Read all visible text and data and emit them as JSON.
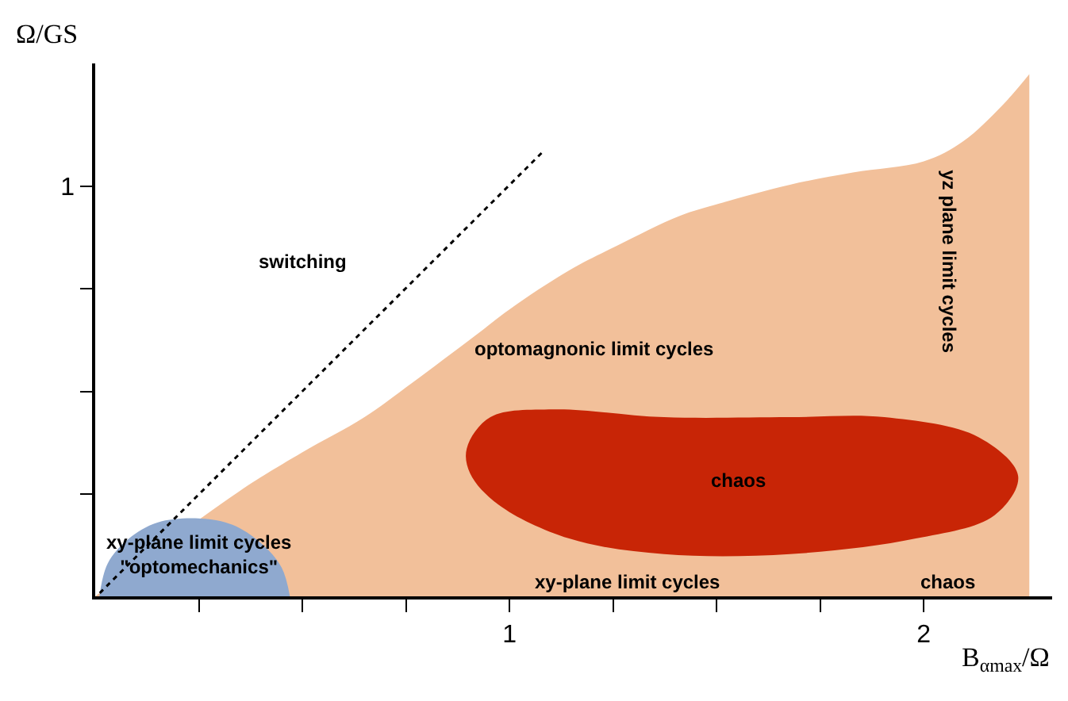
{
  "chart_data": {
    "type": "area",
    "xlabel": "B$_{αmax}$/Ω",
    "ylabel": "Ω/GS",
    "xlim": [
      0,
      2.31
    ],
    "ylim": [
      0,
      1.3
    ],
    "xticks": [
      {
        "value": 0.25,
        "label": null
      },
      {
        "value": 0.5,
        "label": null
      },
      {
        "value": 0.75,
        "label": null
      },
      1,
      {
        "value": 1.25,
        "label": null
      },
      {
        "value": 1.5,
        "label": null
      },
      {
        "value": 1.75,
        "label": null
      },
      2
    ],
    "yticks": [
      {
        "value": 0.25,
        "label": null
      },
      {
        "value": 0.5,
        "label": null
      },
      {
        "value": 0.75,
        "label": null
      },
      1
    ],
    "grid": false,
    "series": [
      {
        "color": "#f2c09a",
        "x": [
          0,
          0.346,
          0.498,
          0.65,
          0.764,
          0.916,
          1.0,
          1.144,
          1.259,
          1.411,
          1.506,
          1.677,
          1.829,
          2.0,
          2.095,
          2.19,
          2.255
        ],
        "values": [
          0,
          0.255,
          0.35,
          0.437,
          0.52,
          0.635,
          0.7,
          0.795,
          0.855,
          0.928,
          0.958,
          1.004,
          1.034,
          1.061,
          1.11,
          1.198,
          1.274
        ]
      },
      {
        "color": "#8fa9cf",
        "x": [
          0.01,
          0.03,
          0.08,
          0.15,
          0.25,
          0.33,
          0.4,
          0.45,
          0.47
        ],
        "values": [
          0,
          0.08,
          0.14,
          0.18,
          0.19,
          0.175,
          0.13,
          0.07,
          0
        ]
      },
      {
        "color": "#c82506",
        "x": [
          0.897,
          0.954,
          1.106,
          1.373,
          1.677,
          1.905,
          2.133,
          2.228,
          2.171,
          1.981,
          1.677,
          1.373,
          1.144,
          0.973,
          0.905,
          0.897
        ],
        "values": [
          0.361,
          0.437,
          0.456,
          0.437,
          0.437,
          0.437,
          0.388,
          0.293,
          0.198,
          0.141,
          0.103,
          0.103,
          0.141,
          0.224,
          0.3,
          0.361
        ]
      },
      {
        "type": "line",
        "color": "#000000",
        "line_style": "dotted",
        "x": [
          0.011,
          1.08
        ],
        "values": [
          0.008,
          1.084
        ]
      }
    ],
    "annotations": [
      "switching",
      "optomagnonic limit cycles",
      "chaos",
      "xy-plane limit cycles\n\"optomechanics\"",
      "xy-plane limit cycles",
      "chaos",
      "yz plane limit cycles"
    ]
  }
}
